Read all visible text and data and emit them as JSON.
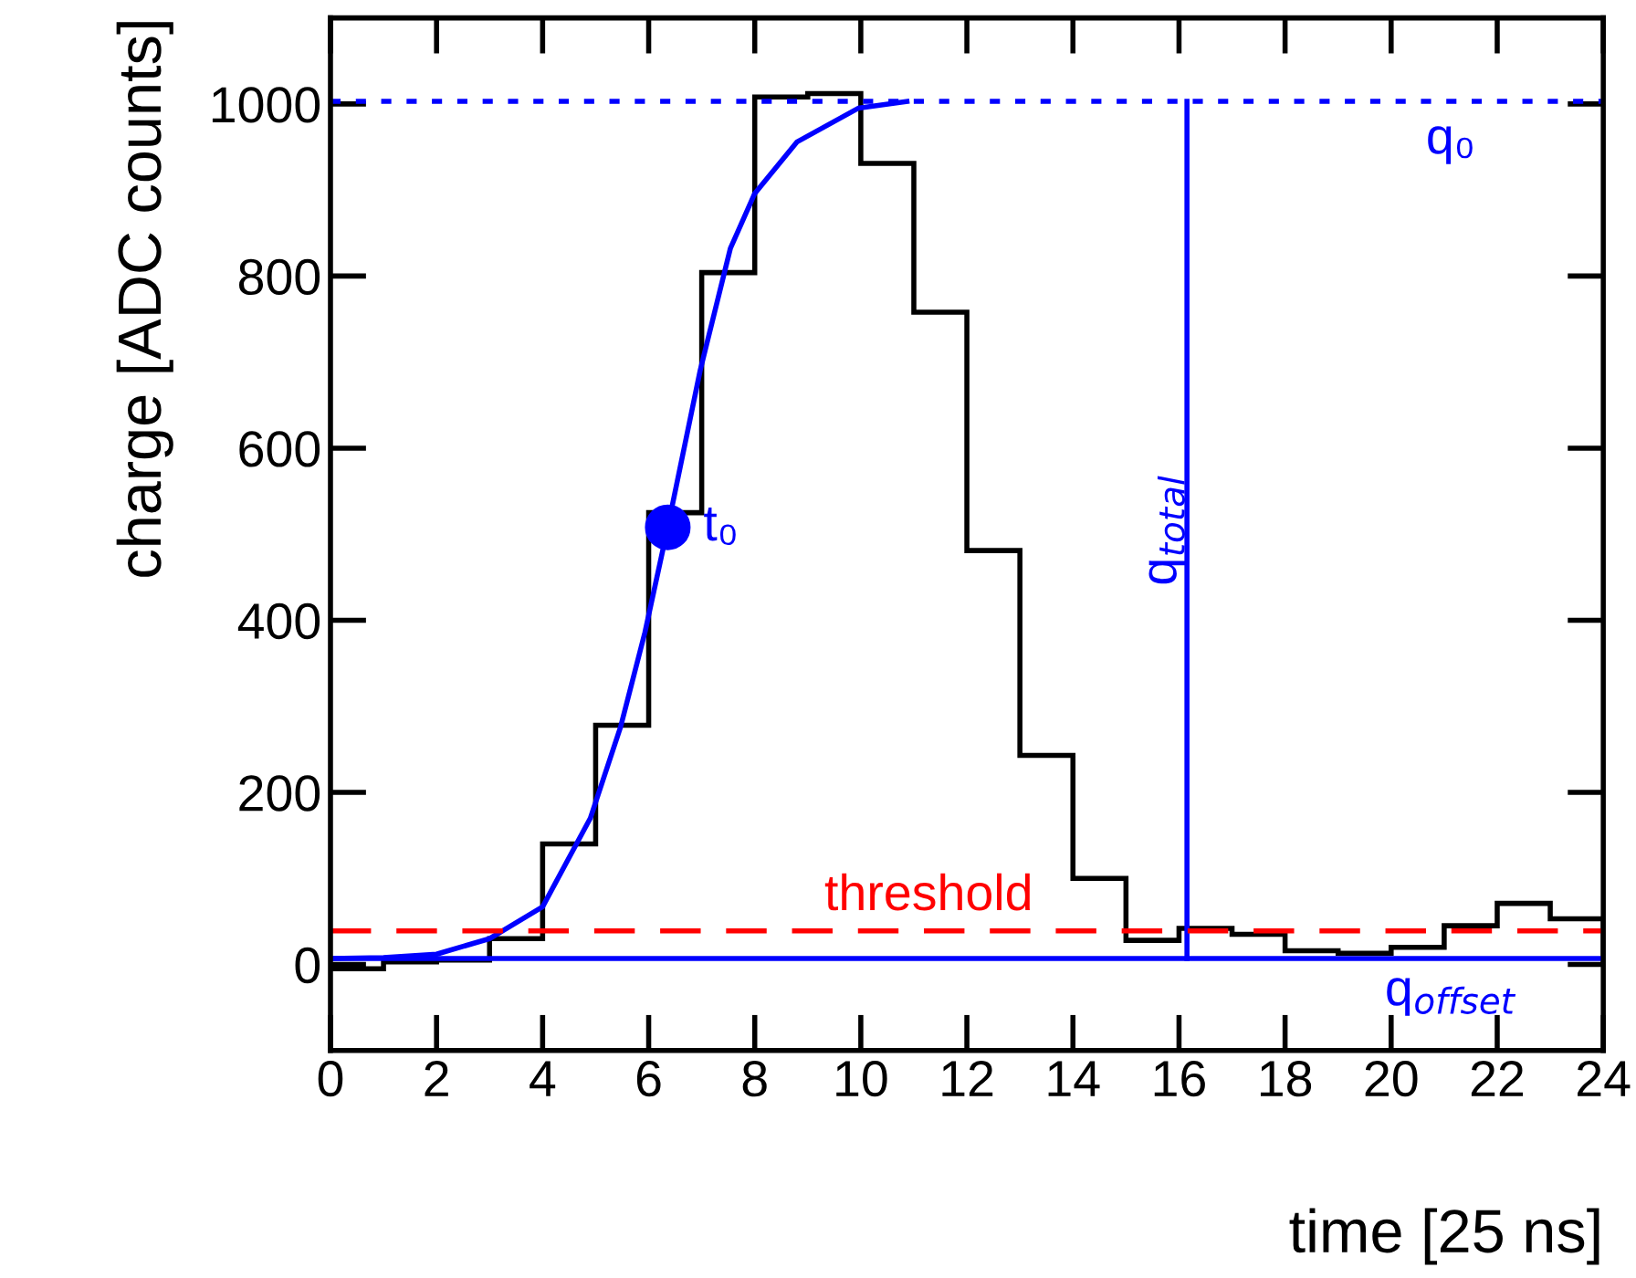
{
  "chart_data": {
    "type": "histogram",
    "xlabel": "time [25 ns]",
    "ylabel": "charge [ADC counts]",
    "bins": [
      0,
      1,
      2,
      3,
      4,
      5,
      6,
      7,
      8,
      9,
      10,
      11,
      12,
      13,
      14,
      15,
      16,
      17,
      18,
      19,
      20,
      21,
      22,
      23,
      24
    ],
    "values": [
      -5,
      3,
      5,
      30,
      140,
      278,
      525,
      804,
      1008,
      1012,
      931,
      758,
      481,
      243,
      100,
      28,
      42,
      35,
      16,
      13,
      20,
      45,
      71,
      53
    ],
    "color": "#000000",
    "series": [
      {
        "type": "line",
        "color": "#0000ff",
        "line_style": "solid",
        "x": [
          0,
          1,
          2,
          3,
          4,
          4.9,
          5.47,
          5.93,
          6.36,
          6.97,
          7.54,
          8.0,
          8.8,
          9.95,
          10.87
        ],
        "values": [
          7,
          8,
          12,
          30,
          67,
          170,
          276,
          386,
          508,
          690,
          832,
          896,
          956,
          995,
          1003
        ]
      },
      {
        "type": "line",
        "color": "#0000ff",
        "line_style": "solid",
        "x": [
          16.15,
          16.15
        ],
        "values": [
          7,
          1003
        ]
      },
      {
        "type": "scatter",
        "color": "#0000ff",
        "marker": "circle",
        "x": [
          6.36
        ],
        "values": [
          508
        ]
      }
    ],
    "ref_lines": [
      {
        "axis": "y",
        "value": 1003,
        "label": "q₀",
        "color": "#0000ff",
        "line_style": "dotted"
      },
      {
        "axis": "y",
        "value": 39,
        "label": "threshold",
        "color": "#ff0000",
        "line_style": "dashed"
      },
      {
        "axis": "y",
        "value": 7,
        "label": "q$_{offset}$",
        "color": "#0000ff",
        "line_style": "solid"
      }
    ],
    "annotations": [
      {
        "text": "t₀",
        "x": 6.36,
        "y": 508
      },
      "q$_{total}$"
    ],
    "xlim": [
      0,
      24
    ],
    "xticks": [
      0,
      2,
      4,
      6,
      8,
      10,
      12,
      14,
      16,
      18,
      20,
      22,
      24
    ],
    "ylim": [
      -100,
      1100
    ],
    "yticks": [
      0,
      200,
      400,
      600,
      800,
      1000
    ],
    "grid": false
  }
}
